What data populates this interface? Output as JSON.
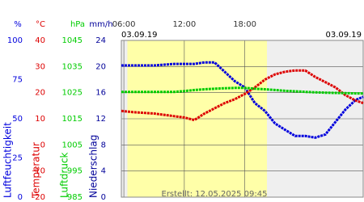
{
  "chart_data": {
    "type": "line",
    "date_left": "03.09.19",
    "date_right": "03.09.19",
    "footer": "Erstellt: 12.05.2025 09:45",
    "xlim": [
      5.75,
      29.75
    ],
    "xticks": [
      {
        "value": 6,
        "label": "06:00"
      },
      {
        "value": 12,
        "label": "12:00"
      },
      {
        "value": 18,
        "label": "18:00"
      }
    ],
    "daylight": [
      6.35,
      20.2
    ],
    "axes": [
      {
        "unit": "%",
        "title": "Luftfeuchtigkeit",
        "color": "#0000dd",
        "lim": [
          0,
          100
        ],
        "ticks": [
          0,
          25,
          50,
          75,
          100
        ]
      },
      {
        "unit": "°C",
        "title": "Temperatur",
        "color": "#dd0000",
        "lim": [
          -20,
          40
        ],
        "ticks": [
          -20,
          -10,
          0,
          10,
          20,
          30,
          40
        ]
      },
      {
        "unit": "hPa",
        "title": "Luftdruck",
        "color": "#00cc00",
        "lim": [
          985,
          1045
        ],
        "ticks": [
          985,
          995,
          1005,
          1015,
          1025,
          1035,
          1045
        ]
      },
      {
        "unit": "mm/h",
        "title": "Niederschlag",
        "color": "#000099",
        "lim": [
          0,
          24
        ],
        "ticks": [
          0,
          4,
          8,
          12,
          16,
          20,
          24
        ]
      }
    ],
    "x": [
      5.75,
      7,
      9,
      11,
      12,
      13,
      14,
      15,
      16,
      17,
      18,
      19,
      20,
      21,
      22,
      23,
      24,
      25,
      26,
      27,
      28,
      29,
      29.75
    ],
    "series": [
      {
        "axis": 0,
        "color": "#0000dd",
        "values": [
          84,
          84,
          84,
          85,
          85,
          85,
          86,
          86,
          80,
          74,
          70,
          60,
          55,
          47,
          43,
          39,
          39,
          38,
          40,
          48,
          56,
          62,
          64
        ]
      },
      {
        "axis": 1,
        "color": "#dd0000",
        "values": [
          13,
          12.5,
          12,
          11,
          10.5,
          9.5,
          12,
          14,
          16,
          17.5,
          19.5,
          22,
          25,
          27,
          28,
          28.5,
          28.5,
          26,
          24,
          22,
          19,
          17,
          16
        ]
      },
      {
        "axis": 2,
        "color": "#00cc00",
        "values": [
          1025.3,
          1025.3,
          1025.3,
          1025.3,
          1025.6,
          1026,
          1026.3,
          1026.5,
          1026.7,
          1026.8,
          1026.8,
          1026.5,
          1026.3,
          1026,
          1025.7,
          1025.5,
          1025.3,
          1025.1,
          1025,
          1024.9,
          1024.8,
          1024.7,
          1024.7
        ]
      }
    ]
  }
}
